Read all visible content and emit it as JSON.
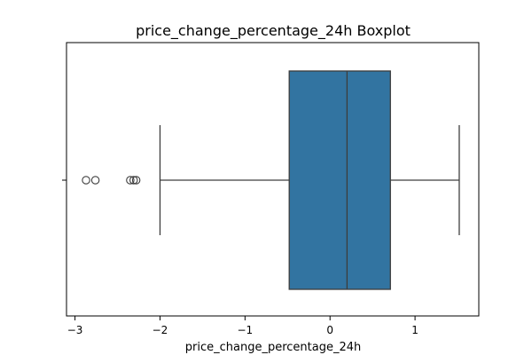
{
  "chart_data": {
    "type": "boxplot",
    "orientation": "horizontal",
    "title": "price_change_percentage_24h Boxplot",
    "xlabel": "price_change_percentage_24h",
    "ylabel": "",
    "xlim": [
      -3.1,
      1.75
    ],
    "xticks": [
      -3,
      -2,
      -1,
      0,
      1
    ],
    "xtick_labels": [
      "−3",
      "−2",
      "−1",
      "0",
      "1"
    ],
    "box": {
      "whisker_low": -2.0,
      "q1": -0.48,
      "median": 0.2,
      "q3": 0.71,
      "whisker_high": 1.52
    },
    "outliers": [
      -2.87,
      -2.76,
      -2.35,
      -2.31,
      -2.28
    ],
    "colors": {
      "box_fill": "#3274a1",
      "line": "#3d3d3d"
    },
    "grid": false
  }
}
